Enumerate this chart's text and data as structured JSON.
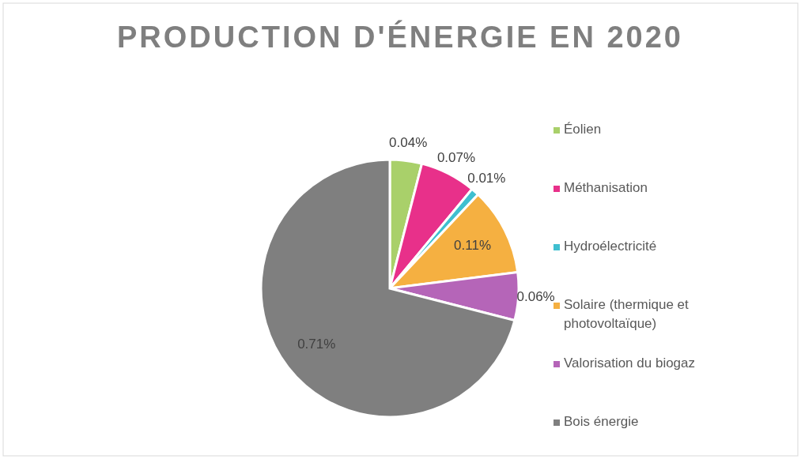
{
  "chart_data": {
    "type": "pie",
    "title": "PRODUCTION D'ÉNERGIE EN 2020",
    "categories": [
      "Éolien",
      "Méthanisation",
      "Hydroélectricité",
      "Solaire (thermique et photovoltaïque)",
      "Valorisation du biogaz",
      "Bois énergie"
    ],
    "values": [
      0.04,
      0.07,
      0.01,
      0.11,
      0.06,
      0.71
    ],
    "value_labels": [
      "0.04%",
      "0.07%",
      "0.01%",
      "0.11%",
      "0.06%",
      "0.71%"
    ],
    "colors": [
      "#a9d06a",
      "#e8308a",
      "#3fbfd0",
      "#f5b041",
      "#b565b8",
      "#7f7f7f"
    ],
    "legend": "right"
  }
}
